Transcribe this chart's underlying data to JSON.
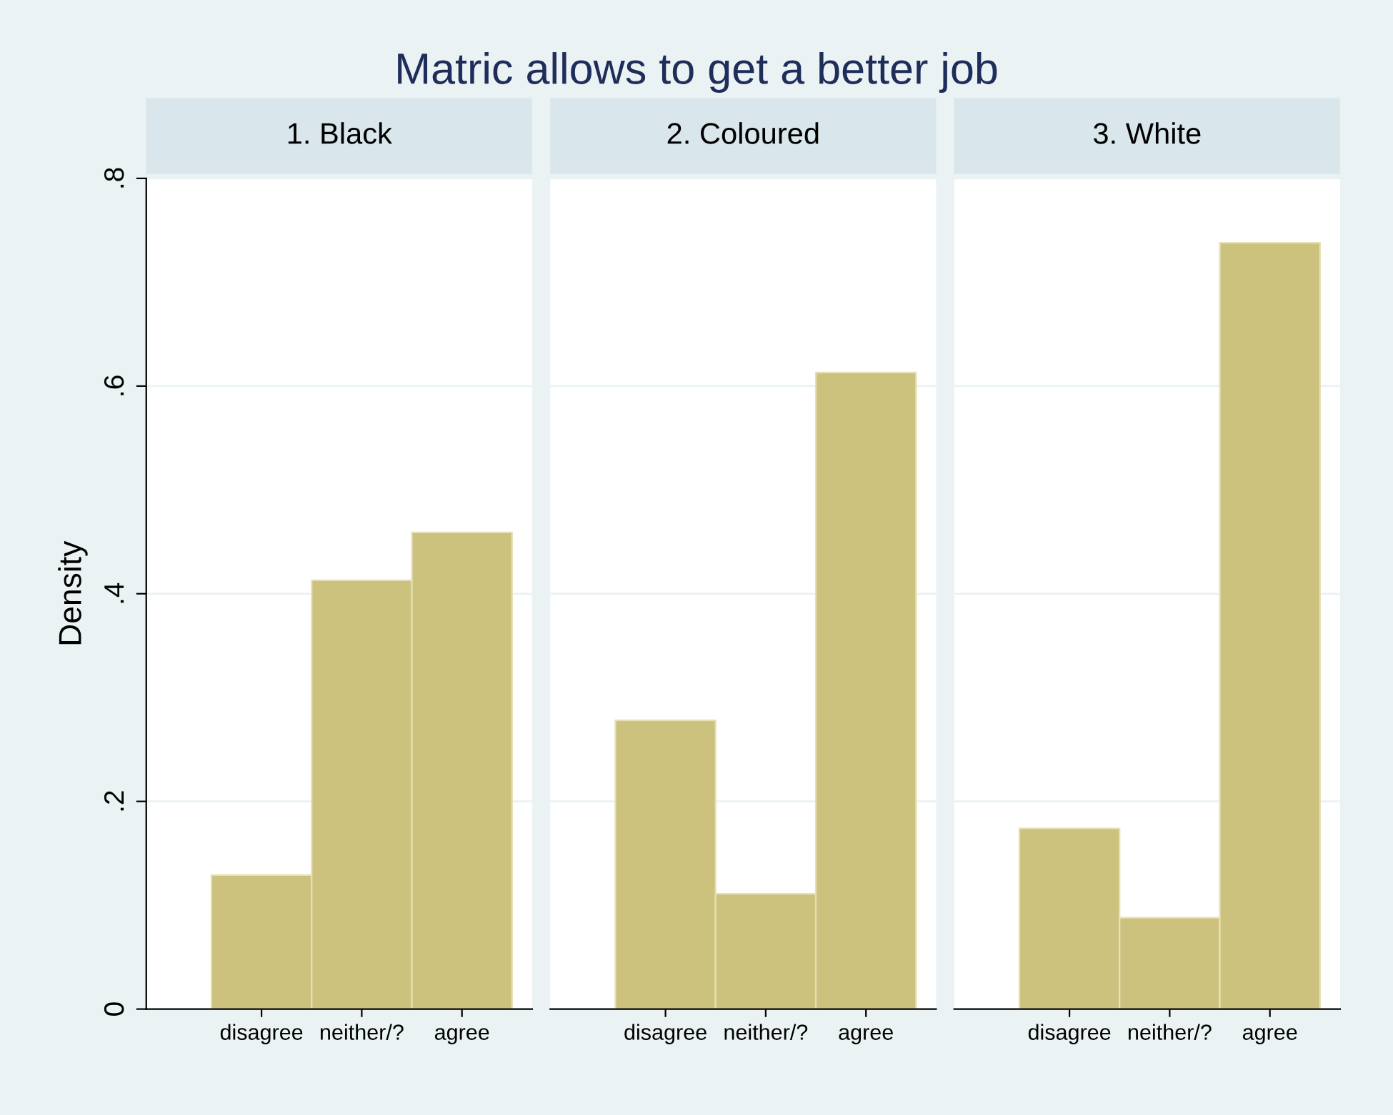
{
  "chart_data": [
    {
      "type": "bar",
      "title": "1. Black",
      "ylabel": "Density",
      "annotations": [
        "Matric allows to get a better job"
      ],
      "categories": [
        "disagree",
        "neither/?",
        "agree"
      ],
      "values": [
        0.129,
        0.413,
        0.459
      ],
      "color": "#ccc27e",
      "ylim": [
        0,
        0.8
      ],
      "yticks": [
        {
          "value": 0,
          "label": "0"
        },
        {
          "value": 0.2,
          "label": ".2"
        },
        {
          "value": 0.4,
          "label": ".4"
        },
        {
          "value": 0.6,
          "label": ".6"
        },
        {
          "value": 0.8,
          "label": ".8"
        }
      ],
      "grid": "y"
    },
    {
      "type": "bar",
      "title": "2. Coloured",
      "categories": [
        "disagree",
        "neither/?",
        "agree"
      ],
      "values": [
        0.278,
        0.111,
        0.613
      ],
      "color": "#ccc27e",
      "ylim": [
        0,
        0.8
      ],
      "grid": "y",
      "tick_labels": "x"
    },
    {
      "type": "bar",
      "title": "3. White",
      "categories": [
        "disagree",
        "neither/?",
        "agree"
      ],
      "values": [
        0.174,
        0.088,
        0.738
      ],
      "color": "#ccc27e",
      "ylim": [
        0,
        0.8
      ],
      "grid": "y",
      "tick_labels": "x"
    }
  ]
}
